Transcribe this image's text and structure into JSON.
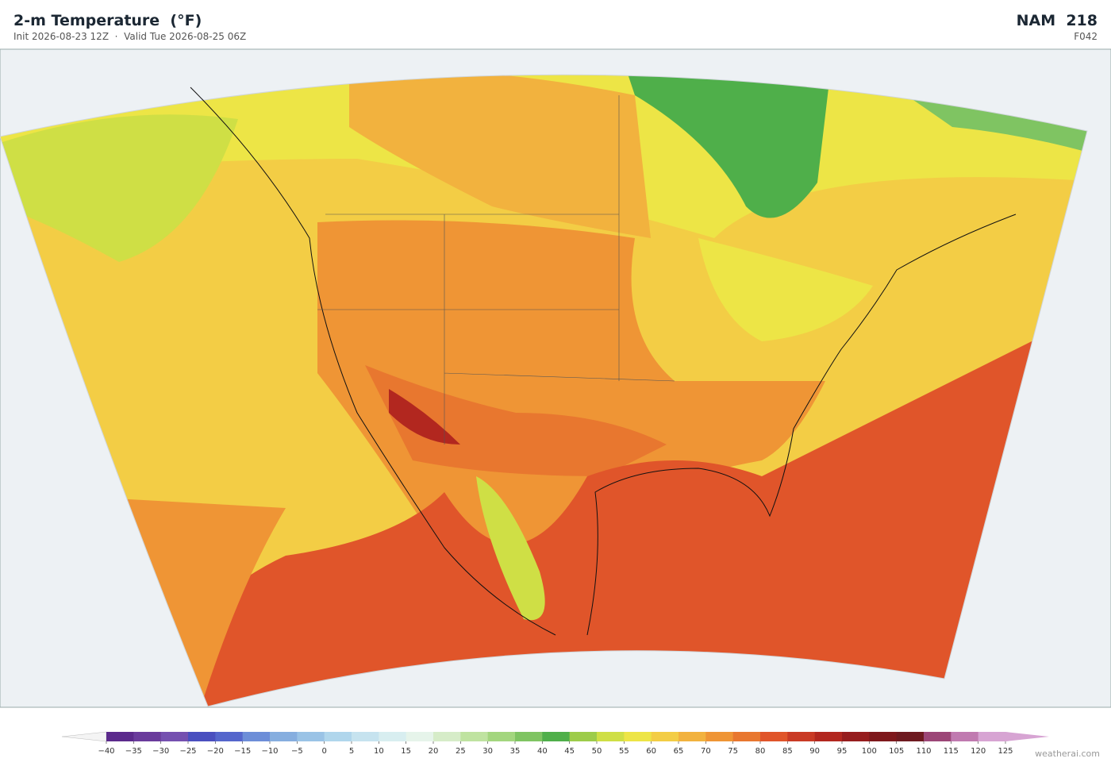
{
  "header": {
    "title": "2-m Temperature  (°F)",
    "subtitle": "Init 2026-08-23 12Z  ·  Valid Tue 2026-08-25 06Z",
    "model": "NAM  218",
    "forecast_hour": "F042"
  },
  "colorbar": {
    "range": [
      -40,
      125
    ],
    "ticks": [
      {
        "value": -40,
        "label": "−40"
      },
      {
        "value": -35,
        "label": "−35"
      },
      {
        "value": -30,
        "label": "−30"
      },
      {
        "value": -25,
        "label": "−25"
      },
      {
        "value": -20,
        "label": "−20"
      },
      {
        "value": -15,
        "label": "−15"
      },
      {
        "value": -10,
        "label": "−10"
      },
      {
        "value": -5,
        "label": "−5"
      },
      0,
      5,
      10,
      15,
      20,
      25,
      30,
      35,
      40,
      45,
      50,
      55,
      60,
      65,
      70,
      75,
      80,
      85,
      90,
      95,
      100,
      105,
      110,
      115,
      120,
      125
    ],
    "colors": [
      "#5b2a8c",
      "#6a3b9c",
      "#7550b0",
      "#4a4fbf",
      "#5566cc",
      "#6d8ed8",
      "#86aedf",
      "#9ac3e6",
      "#b0d6ec",
      "#c6e3ef",
      "#d8eef0",
      "#e6f4ea",
      "#d6ecc8",
      "#bfe3a0",
      "#a3d67e",
      "#7fc462",
      "#4faf4a",
      "#9dcc4a",
      "#cfdf45",
      "#ede546",
      "#f3cd45",
      "#f2b23e",
      "#ef9535",
      "#e8772f",
      "#e0552a",
      "#c93a25",
      "#b2271f",
      "#961d1e",
      "#7e181c",
      "#6e1a20",
      "#9c4677",
      "#c07ab0",
      "#d7a4d3"
    ],
    "extend_colors": [
      "#f4f4f4",
      "#d7a4d3"
    ]
  },
  "credit": "weatherai.com"
}
